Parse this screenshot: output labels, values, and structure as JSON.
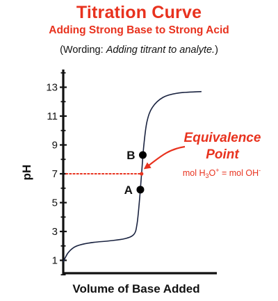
{
  "header": {
    "title": "Titration Curve",
    "subtitle": "Adding Strong Base to Strong Acid",
    "wording_prefix": "(Wording: ",
    "wording_italic": "Adding titrant to analyte.",
    "wording_suffix": ")"
  },
  "colors": {
    "accent": "#e8321e",
    "curve": "#1a2340",
    "axis": "#111111"
  },
  "chart_data": {
    "type": "line",
    "title": "Titration Curve",
    "subtitle": "Adding Strong Base to Strong Acid",
    "xlabel": "Volume of Base Added",
    "ylabel": "pH",
    "ylim": [
      0.4,
      14
    ],
    "yticks": [
      1,
      3,
      5,
      7,
      9,
      11,
      13
    ],
    "ytick_labels": [
      "1",
      "3",
      "5",
      "7",
      "9",
      "11",
      "13"
    ],
    "xlim": [
      0,
      10
    ],
    "x_tick_labels_shown": false,
    "grid": false,
    "series": [
      {
        "points": [
          [
            0.0,
            0.9
          ],
          [
            0.3,
            1.5
          ],
          [
            0.7,
            1.9
          ],
          [
            1.2,
            2.1
          ],
          [
            2.0,
            2.25
          ],
          [
            3.0,
            2.35
          ],
          [
            4.0,
            2.5
          ],
          [
            4.6,
            2.8
          ],
          [
            4.8,
            3.5
          ],
          [
            4.95,
            5.0
          ],
          [
            5.1,
            7.0
          ],
          [
            5.25,
            9.0
          ],
          [
            5.45,
            10.6
          ],
          [
            5.8,
            11.6
          ],
          [
            6.5,
            12.3
          ],
          [
            7.5,
            12.6
          ],
          [
            9.0,
            12.7
          ]
        ]
      }
    ],
    "points": [
      {
        "label": "A",
        "x": 5.02,
        "y": 5.9
      },
      {
        "label": "B",
        "x": 5.18,
        "y": 8.3
      }
    ],
    "equivalence": {
      "label_line1": "Equivalence",
      "label_line2": "Point",
      "x": 5.1,
      "y": 7.0,
      "formula": {
        "p1": "mol H",
        "s1": "3",
        "p2": "O",
        "sup1": "+",
        "p3": " = mol OH",
        "sup2": "-"
      }
    }
  }
}
